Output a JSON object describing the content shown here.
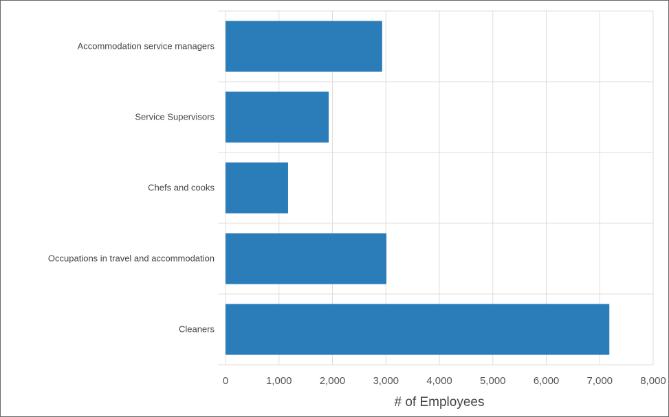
{
  "chart_data": {
    "type": "bar",
    "orientation": "horizontal",
    "categories": [
      "Accommodation service managers",
      "Service Supervisors",
      "Chefs and cooks",
      "Occupations in travel and accommodation",
      "Cleaners"
    ],
    "values": [
      2930,
      1930,
      1170,
      3010,
      7180
    ],
    "xlim": [
      0,
      8000
    ],
    "x_ticks": [
      0,
      1000,
      2000,
      3000,
      4000,
      5000,
      6000,
      7000,
      8000
    ],
    "x_tick_labels": [
      "0",
      "1,000",
      "2,000",
      "3,000",
      "4,000",
      "5,000",
      "6,000",
      "7,000",
      "8,000"
    ],
    "xlabel": "# of Employees",
    "ylabel": "",
    "title": "",
    "grid": true,
    "bar_color": "#2a7db8",
    "grid_color": "#dddddd"
  }
}
